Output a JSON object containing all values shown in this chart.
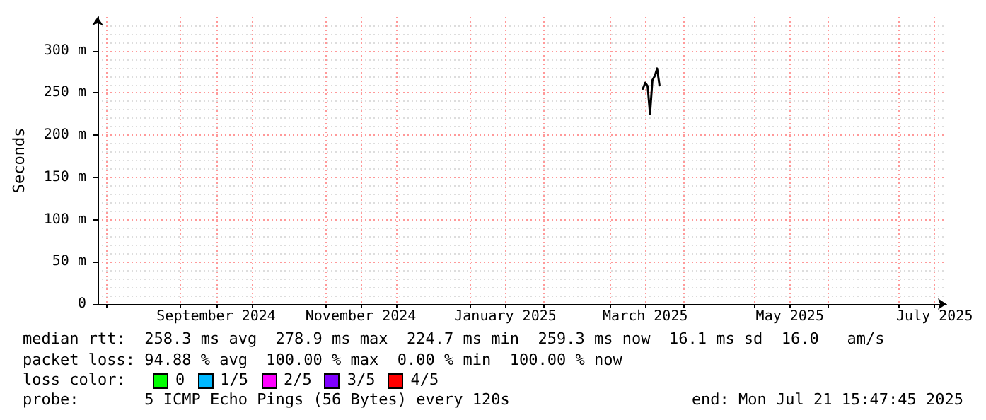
{
  "chart_data": {
    "type": "line",
    "ylabel": "Seconds",
    "x": [
      "2025-03-15",
      "2025-03-16",
      "2025-03-17",
      "2025-03-18",
      "2025-03-19",
      "2025-03-20",
      "2025-03-21",
      "2025-03-22"
    ],
    "series": [
      {
        "color": "#000000",
        "values": [
          255,
          262,
          258,
          225,
          265,
          270,
          279,
          259
        ]
      }
    ],
    "xlim": [
      "2024-07-28",
      "2025-07-21"
    ],
    "xticks": [
      {
        "value": "2024-08-01",
        "label": null
      },
      {
        "value": "2024-09-01",
        "label": null
      },
      {
        "value": "2024-09-16",
        "label": "September 2024"
      },
      {
        "value": "2024-10-01",
        "label": null
      },
      {
        "value": "2024-11-01",
        "label": null
      },
      {
        "value": "2024-11-16",
        "label": "November 2024"
      },
      {
        "value": "2024-12-01",
        "label": null
      },
      {
        "value": "2025-01-01",
        "label": null
      },
      {
        "value": "2025-01-16",
        "label": "January 2025"
      },
      {
        "value": "2025-02-01",
        "label": null
      },
      {
        "value": "2025-03-01",
        "label": null
      },
      {
        "value": "2025-03-16",
        "label": "March 2025"
      },
      {
        "value": "2025-04-01",
        "label": null
      },
      {
        "value": "2025-05-01",
        "label": null
      },
      {
        "value": "2025-05-16",
        "label": "May 2025"
      },
      {
        "value": "2025-06-01",
        "label": null
      },
      {
        "value": "2025-07-01",
        "label": null
      },
      {
        "value": "2025-07-16",
        "label": "July 2025"
      }
    ],
    "ylim": [
      0,
      340
    ],
    "yticks": [
      0,
      {
        "value": 50,
        "label": "50 m"
      },
      {
        "value": 100,
        "label": "100 m"
      },
      {
        "value": 150,
        "label": "150 m"
      },
      {
        "value": 200,
        "label": "200 m"
      },
      {
        "value": 250,
        "label": "250 m"
      },
      {
        "value": 300,
        "label": "300 m"
      }
    ],
    "grid": true,
    "marker": "none",
    "line_style": "solid",
    "annotations": [
      "median rtt:  258.3 ms avg  278.9 ms max  224.7 ms min  259.3 ms now  16.1 ms sd  16.0   am/s",
      "packet loss: 94.88 % avg  100.00 % max  0.00 % min  100.00 % now",
      "loss color:",
      "0",
      "1/5",
      "2/5",
      "3/5",
      "4/5",
      "probe:       5 ICMP Echo Pings (56 Bytes) every 120s",
      "end: Mon Jul 21 15:47:45 2025"
    ]
  }
}
